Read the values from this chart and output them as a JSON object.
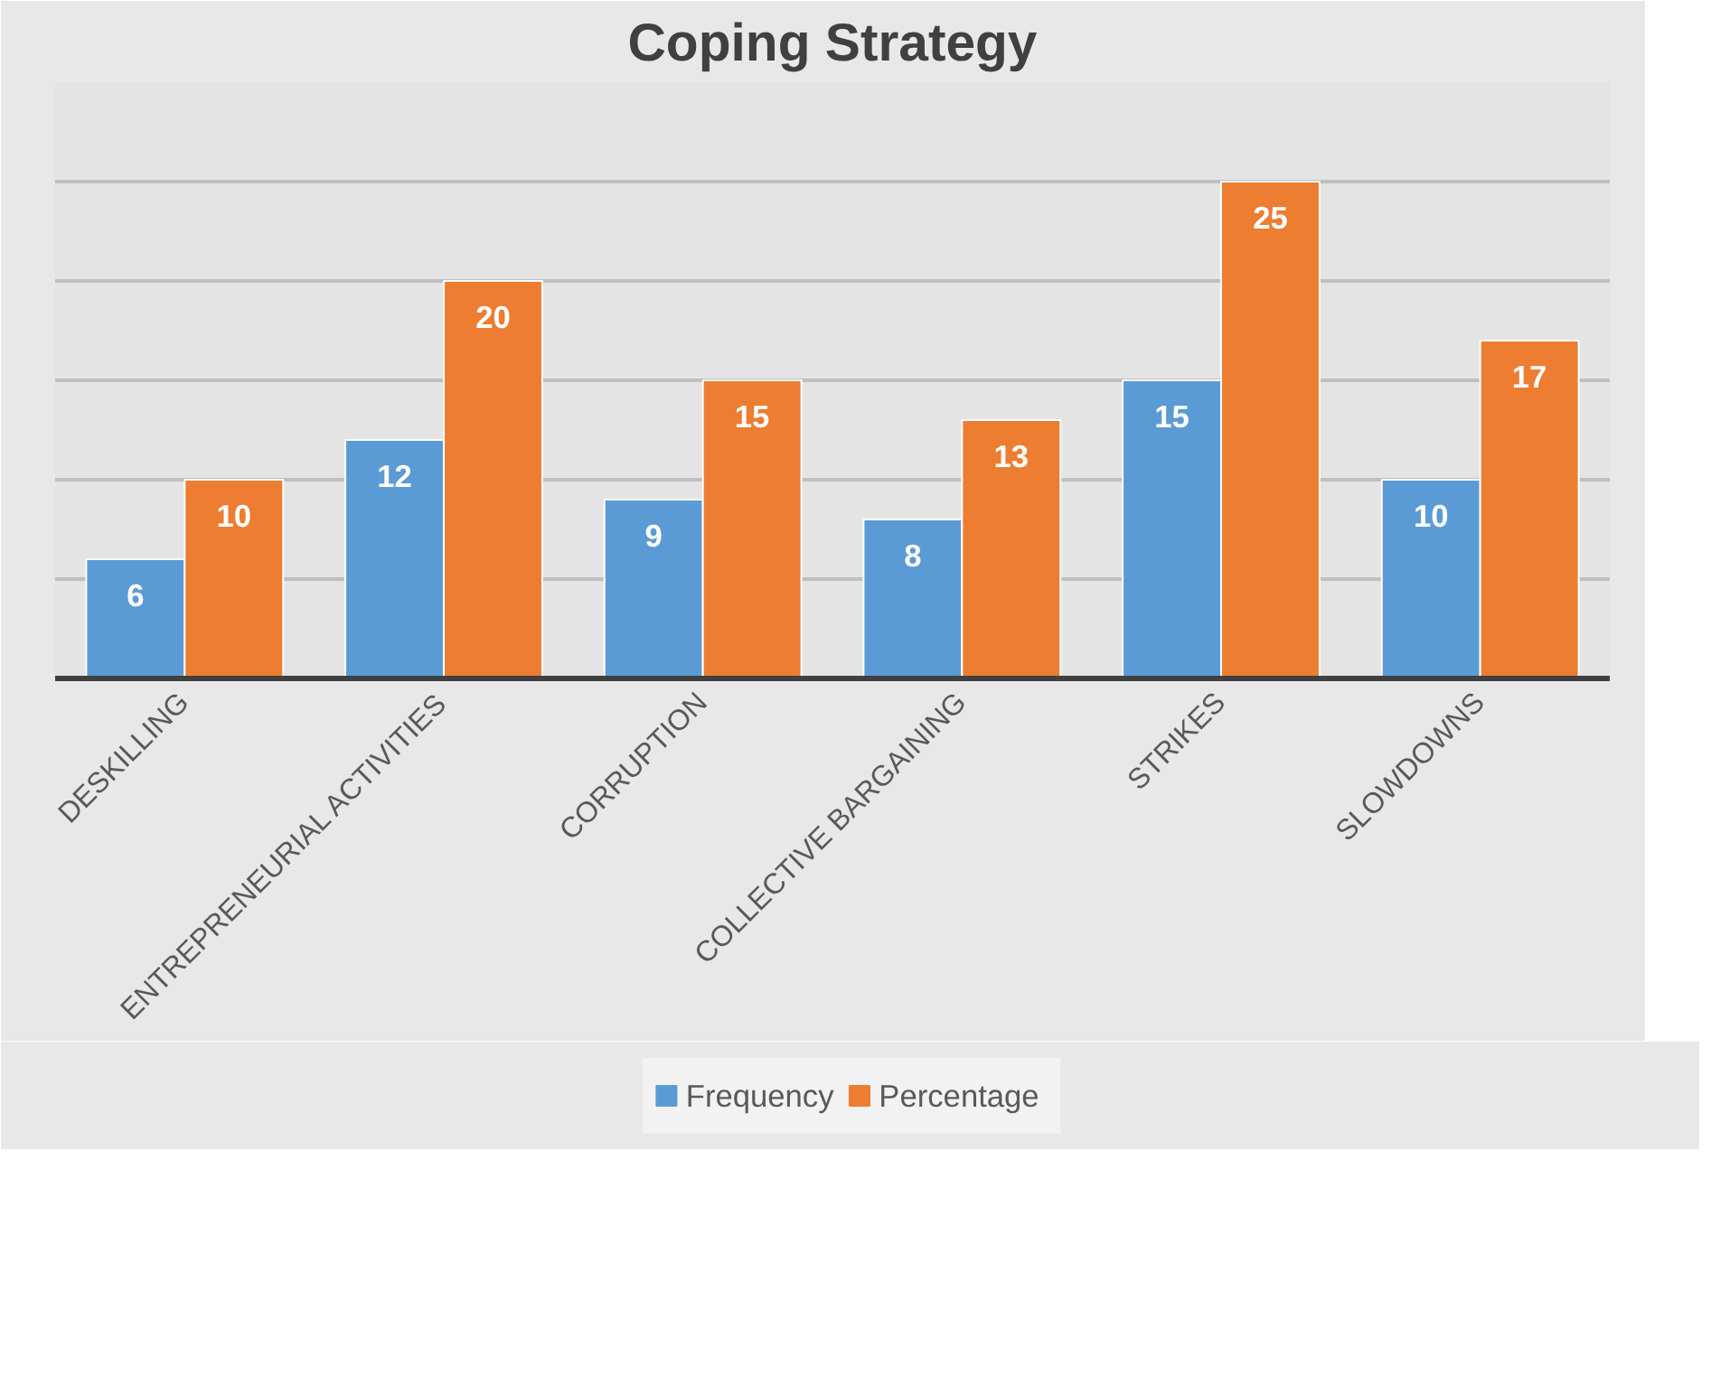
{
  "chart_data": {
    "type": "bar",
    "title": "Coping Strategy",
    "categories": [
      "DESKILLING",
      "ENTREPRENEURIAL ACTIVITIES",
      "CORRUPTION",
      "COLLECTIVE BARGAINING",
      "STRIKES",
      "SLOWDOWNS"
    ],
    "series": [
      {
        "name": "Frequency",
        "color": "#5b9bd5",
        "values": [
          6,
          12,
          9,
          8,
          15,
          10
        ]
      },
      {
        "name": "Percentage",
        "color": "#ed7d31",
        "values": [
          10,
          20,
          15,
          13,
          25,
          17
        ]
      }
    ],
    "ylim": [
      0,
      30
    ],
    "yticks": [
      {
        "value": 0,
        "label": null
      },
      {
        "value": 5,
        "label": null
      },
      {
        "value": 10,
        "label": null
      },
      {
        "value": 15,
        "label": null
      },
      {
        "value": 20,
        "label": null
      },
      {
        "value": 25,
        "label": null
      },
      {
        "value": 30,
        "label": null
      }
    ],
    "tick_labels": "x",
    "grid": "y",
    "data_labels": true,
    "legend": "bottom"
  }
}
